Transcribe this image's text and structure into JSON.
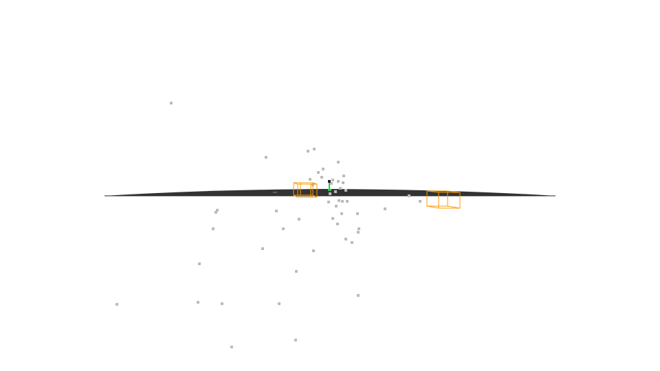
{
  "scene": {
    "background_color": "#ffffff",
    "ground_color": "#333333",
    "point_color": "#bbbbbb",
    "box_color": "#ff9900",
    "robot_color": "#22cc44",
    "view": "3d-viewport",
    "objects": {
      "ground_plane": "ground-plane",
      "point_cloud": "point-cloud",
      "bounding_boxes": [
        "bounding-box-left",
        "bounding-box-right"
      ],
      "agent_marker": "robot-marker-icon"
    }
  }
}
